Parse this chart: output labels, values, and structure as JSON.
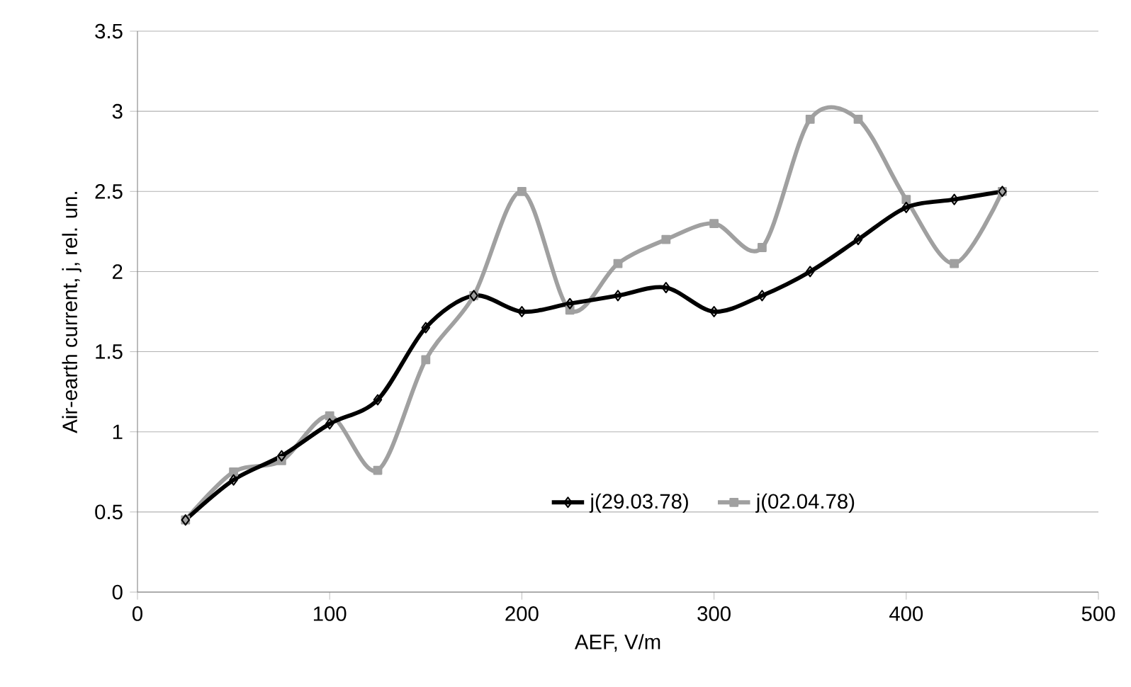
{
  "chart_data": {
    "type": "line",
    "xlabel": "AEF, V/m",
    "ylabel": "Air-earth current, j, rel. un.",
    "xlim": [
      0,
      500
    ],
    "xticks": [
      0,
      100,
      200,
      300,
      400,
      500
    ],
    "ylim": [
      0,
      3.5
    ],
    "yticks": [
      0,
      0.5,
      1,
      1.5,
      2,
      2.5,
      3,
      3.5
    ],
    "grid": "y",
    "legend": "bottom",
    "series": [
      {
        "name": "j(29.03.78)",
        "color": "#000000",
        "marker": "diamond",
        "x": [
          25,
          50,
          75,
          100,
          125,
          150,
          175,
          200,
          225,
          250,
          275,
          300,
          325,
          350,
          375,
          400,
          425,
          450
        ],
        "values": [
          0.45,
          0.7,
          0.85,
          1.05,
          1.2,
          1.65,
          1.85,
          1.75,
          1.8,
          1.85,
          1.9,
          1.75,
          1.85,
          2.0,
          2.2,
          2.4,
          2.45,
          2.5
        ]
      },
      {
        "name": "j(02.04.78)",
        "color": "#a0a0a0",
        "marker": "square",
        "x": [
          25,
          50,
          75,
          100,
          125,
          150,
          175,
          200,
          225,
          250,
          275,
          300,
          325,
          350,
          375,
          400,
          425,
          450
        ],
        "values": [
          0.45,
          0.75,
          0.82,
          1.1,
          0.76,
          1.45,
          1.85,
          2.5,
          1.76,
          2.05,
          2.2,
          2.3,
          2.15,
          2.95,
          2.95,
          2.45,
          2.05,
          2.5
        ]
      }
    ]
  }
}
